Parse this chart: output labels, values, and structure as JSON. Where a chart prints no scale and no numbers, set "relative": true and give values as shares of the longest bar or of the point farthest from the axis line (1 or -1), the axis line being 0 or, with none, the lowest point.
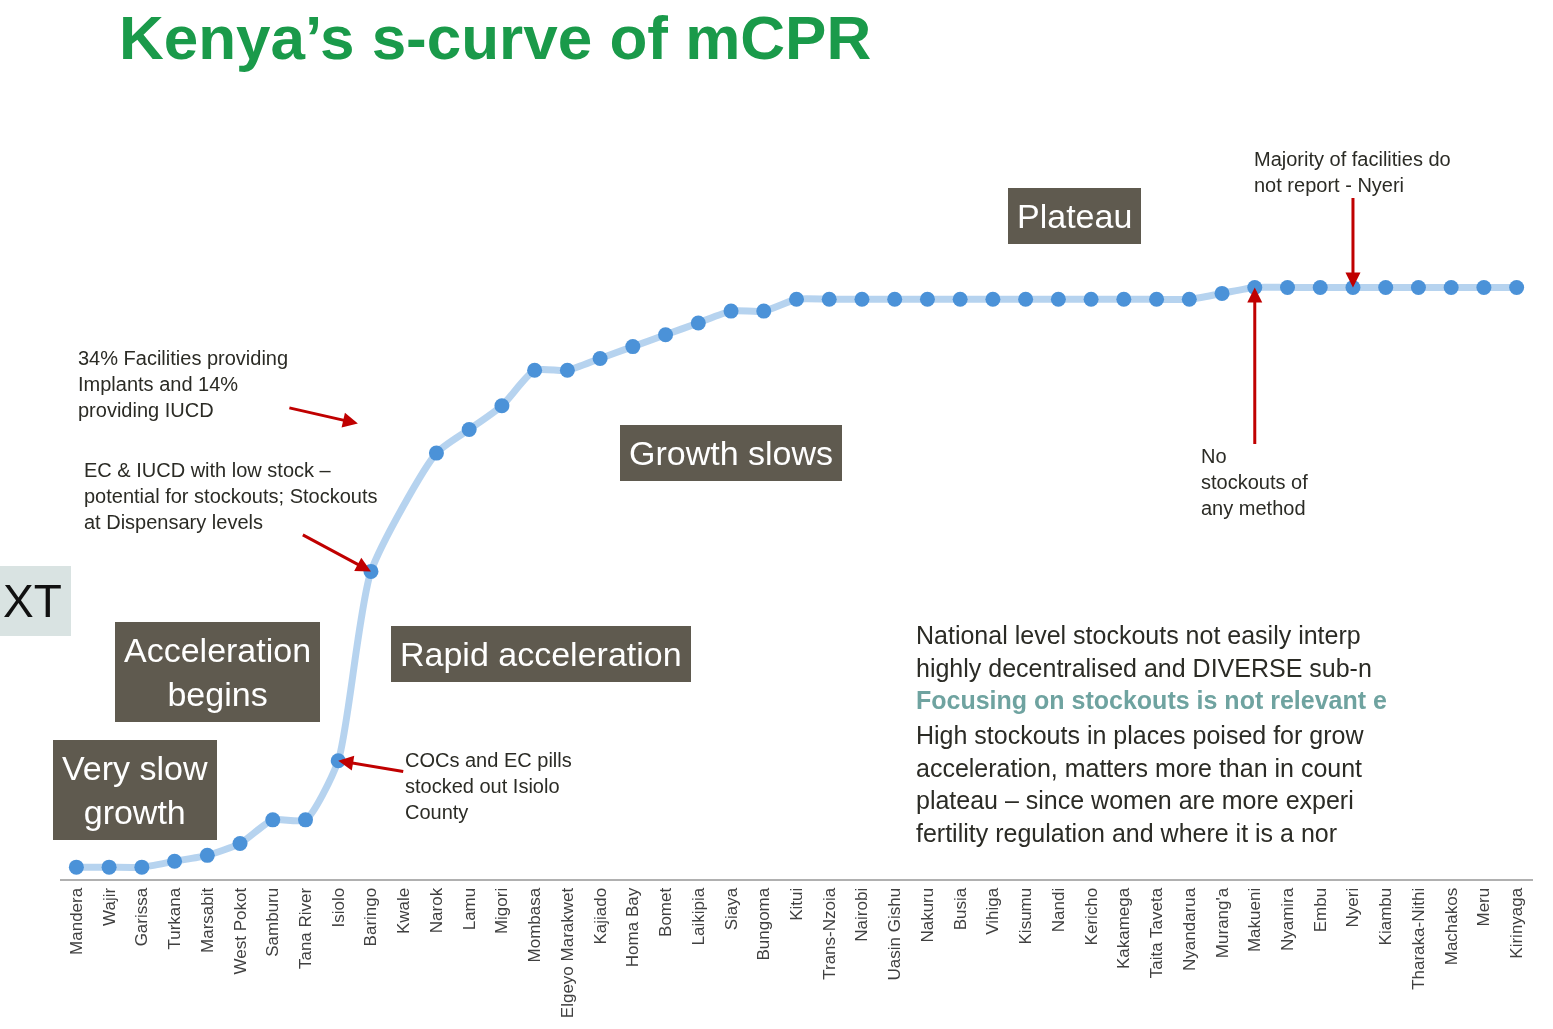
{
  "chart_data": {
    "type": "line",
    "title": "Kenya’s s-curve of mCPR",
    "relative": true,
    "marker": "circle",
    "categories": [
      "Mandera",
      "Wajir",
      "Garissa",
      "Turkana",
      "Marsabit",
      "West Pokot",
      "Samburu",
      "Tana River",
      "Isiolo",
      "Baringo",
      "Kwale",
      "Narok",
      "Lamu",
      "Migori",
      "Mombasa",
      "Elgeyo Marakwet",
      "Kajiado",
      "Homa Bay",
      "Bomet",
      "Laikipia",
      "Siaya",
      "Bungoma",
      "Kitui",
      "Trans-Nzoia",
      "Nairobi",
      "Uasin Gishu",
      "Nakuru",
      "Busia",
      "Vihiga",
      "Kisumu",
      "Nandi",
      "Kericho",
      "Kakamega",
      "Taita Taveta",
      "Nyandarua",
      "Murang'a",
      "Makueni",
      "Nyamira",
      "Embu",
      "Nyeri",
      "Kiambu",
      "Tharaka-Nithi",
      "Machakos",
      "Meru",
      "Kirinyaga"
    ],
    "series": [
      {
        "color": "#4b92d8",
        "values": [
          0.02,
          0.02,
          0.02,
          0.03,
          0.04,
          0.06,
          0.1,
          0.1,
          0.2,
          0.52,
          null,
          0.72,
          0.76,
          0.8,
          0.86,
          0.86,
          0.88,
          0.9,
          0.92,
          0.94,
          0.96,
          0.96,
          0.98,
          0.98,
          0.98,
          0.98,
          0.98,
          0.98,
          0.98,
          0.98,
          0.98,
          0.98,
          0.98,
          0.98,
          0.98,
          0.99,
          1,
          1,
          1,
          1,
          1,
          1,
          1,
          1,
          1
        ]
      }
    ],
    "annotations": [
      "XT",
      "34% Facilities providing\nImplants and 14%\nproviding IUCD",
      {
        "text": "EC & IUCD with low stock –\npotential for stockouts; Stockouts\nat Dispensary levels",
        "x": "Baringo",
        "y": 0.52
      },
      "Very slow\ngrowth",
      "Acceleration\nbegins",
      "Rapid acceleration",
      "Growth slows",
      "Plateau",
      {
        "text": "COCs and EC pills\nstocked out Isiolo\nCounty",
        "x": "Isiolo",
        "y": 0.2
      },
      {
        "text": "Majority of facilities do\nnot report - Nyeri",
        "x": "Nyeri",
        "y": 1
      },
      {
        "text": "No\nstockouts of\nany method",
        "x": "Makueni",
        "y": 1
      },
      "National level stockouts not easily interp\nhighly decentralised and DIVERSE sub-n",
      "Focusing on stockouts is not relevant e",
      "High stockouts in places poised for grow\nacceleration, matters more than in count\nplateau – since women are more experi\nfertility regulation and where it is a nor"
    ]
  }
}
